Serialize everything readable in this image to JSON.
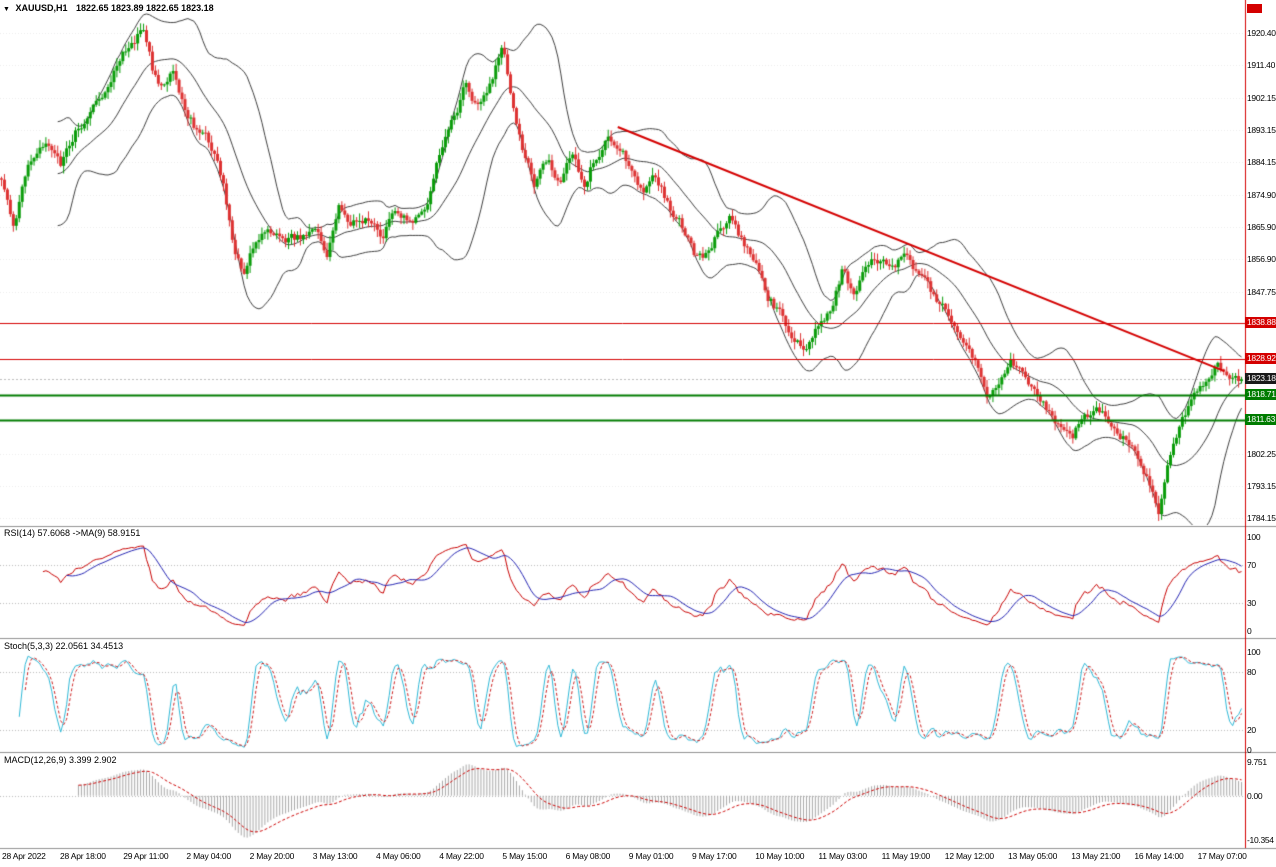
{
  "window": {
    "dropdown_glyph": "▼",
    "symbol_period": "XAUUSD,H1",
    "ohlc": "1822.65 1823.89 1822.65 1823.18"
  },
  "colors": {
    "up": "#0a9c0a",
    "down": "#dd3333",
    "bollinger": "#3f3f3f",
    "trend": "#d40000",
    "resistance": "#d40000",
    "support": "#007c00",
    "grid": "#ececec",
    "divider": "#909090",
    "axis_text": "#000000",
    "rsi_main": "#c80000",
    "rsi_ma": "#2424b2",
    "stoch_main": "#2fb8d6",
    "stoch_signal": "#cc2222",
    "macd_hist": "#a8a8a8",
    "macd_signal": "#cc0000",
    "badge_black": "#1a1a1a",
    "current_line": "#bcbcbc",
    "right_edge_line": "#d40000"
  },
  "chart_data": {
    "type": "candlestick+indicators",
    "symbol": "XAUUSD",
    "timeframe": "H1",
    "ohlc_display": {
      "open": "1822.65",
      "high": "1823.89",
      "low": "1822.65",
      "close": "1823.18"
    },
    "y_axis": {
      "ylim": [
        1782.3,
        1925.7
      ],
      "labels": [
        "1920.40",
        "1911.40",
        "1902.15",
        "1893.15",
        "1884.15",
        "1874.90",
        "1865.90",
        "1856.90",
        "1847.75",
        "1802.25",
        "1793.15",
        "1784.15"
      ]
    },
    "levels": {
      "resistance": [
        {
          "price": 1838.88,
          "label": "1838.88"
        },
        {
          "price": 1828.92,
          "label": "1828.92"
        }
      ],
      "support": [
        {
          "price": 1818.71,
          "label": "1818.71"
        },
        {
          "price": 1811.63,
          "label": "1811.63"
        }
      ],
      "current": {
        "price": 1823.18,
        "label": "1823.18"
      }
    },
    "trendline": {
      "x1": 0.497,
      "price1": 1894.0,
      "x2": 0.985,
      "price2": 1825.5
    },
    "bollinger": {
      "period": 20,
      "deviation": 2
    },
    "price_path": [
      [
        0,
        1880
      ],
      [
        0.01,
        1864
      ],
      [
        0.022,
        1885
      ],
      [
        0.035,
        1890
      ],
      [
        0.048,
        1884
      ],
      [
        0.06,
        1893
      ],
      [
        0.072,
        1898
      ],
      [
        0.085,
        1906
      ],
      [
        0.098,
        1914
      ],
      [
        0.108,
        1919
      ],
      [
        0.115,
        1921
      ],
      [
        0.122,
        1910
      ],
      [
        0.13,
        1904
      ],
      [
        0.138,
        1911
      ],
      [
        0.148,
        1899
      ],
      [
        0.158,
        1893
      ],
      [
        0.168,
        1890
      ],
      [
        0.178,
        1880
      ],
      [
        0.188,
        1858
      ],
      [
        0.196,
        1852
      ],
      [
        0.205,
        1862
      ],
      [
        0.215,
        1866
      ],
      [
        0.228,
        1862
      ],
      [
        0.24,
        1863
      ],
      [
        0.252,
        1866
      ],
      [
        0.262,
        1858
      ],
      [
        0.272,
        1872
      ],
      [
        0.282,
        1866
      ],
      [
        0.295,
        1869
      ],
      [
        0.308,
        1863
      ],
      [
        0.318,
        1871
      ],
      [
        0.33,
        1866
      ],
      [
        0.342,
        1870
      ],
      [
        0.352,
        1886
      ],
      [
        0.36,
        1893
      ],
      [
        0.368,
        1899
      ],
      [
        0.375,
        1907
      ],
      [
        0.382,
        1900
      ],
      [
        0.39,
        1904
      ],
      [
        0.398,
        1910
      ],
      [
        0.405,
        1916
      ],
      [
        0.412,
        1900
      ],
      [
        0.42,
        1888
      ],
      [
        0.43,
        1878
      ],
      [
        0.44,
        1884
      ],
      [
        0.45,
        1879
      ],
      [
        0.46,
        1886
      ],
      [
        0.47,
        1878
      ],
      [
        0.48,
        1886
      ],
      [
        0.49,
        1892
      ],
      [
        0.498,
        1888
      ],
      [
        0.508,
        1883
      ],
      [
        0.518,
        1876
      ],
      [
        0.528,
        1880
      ],
      [
        0.538,
        1872
      ],
      [
        0.548,
        1867
      ],
      [
        0.558,
        1859
      ],
      [
        0.568,
        1858
      ],
      [
        0.578,
        1864
      ],
      [
        0.588,
        1869
      ],
      [
        0.598,
        1862
      ],
      [
        0.608,
        1856
      ],
      [
        0.618,
        1846
      ],
      [
        0.628,
        1842
      ],
      [
        0.638,
        1835
      ],
      [
        0.648,
        1832
      ],
      [
        0.658,
        1839
      ],
      [
        0.668,
        1842
      ],
      [
        0.678,
        1854
      ],
      [
        0.688,
        1846
      ],
      [
        0.698,
        1856
      ],
      [
        0.708,
        1857
      ],
      [
        0.718,
        1854
      ],
      [
        0.728,
        1858
      ],
      [
        0.738,
        1854
      ],
      [
        0.748,
        1849
      ],
      [
        0.758,
        1844
      ],
      [
        0.768,
        1839
      ],
      [
        0.778,
        1833
      ],
      [
        0.788,
        1826
      ],
      [
        0.795,
        1818
      ],
      [
        0.805,
        1824
      ],
      [
        0.815,
        1828
      ],
      [
        0.825,
        1824
      ],
      [
        0.835,
        1819
      ],
      [
        0.845,
        1813
      ],
      [
        0.855,
        1809
      ],
      [
        0.862,
        1806
      ],
      [
        0.872,
        1812
      ],
      [
        0.882,
        1816
      ],
      [
        0.892,
        1812
      ],
      [
        0.902,
        1808
      ],
      [
        0.912,
        1804
      ],
      [
        0.92,
        1798
      ],
      [
        0.928,
        1792
      ],
      [
        0.934,
        1786
      ],
      [
        0.94,
        1799
      ],
      [
        0.948,
        1808
      ],
      [
        0.956,
        1814
      ],
      [
        0.964,
        1819
      ],
      [
        0.972,
        1824
      ],
      [
        0.98,
        1827
      ],
      [
        0.988,
        1825
      ],
      [
        1,
        1823.18
      ]
    ],
    "x_axis": {
      "labels": [
        "28 Apr 2022",
        "28 Apr 18:00",
        "29 Apr 11:00",
        "2 May 04:00",
        "2 May 20:00",
        "3 May 13:00",
        "4 May 06:00",
        "4 May 22:00",
        "5 May 15:00",
        "6 May 08:00",
        "9 May 01:00",
        "9 May 17:00",
        "10 May 10:00",
        "11 May 03:00",
        "11 May 19:00",
        "12 May 12:00",
        "13 May 05:00",
        "13 May 21:00",
        "16 May 14:00",
        "17 May 07:00"
      ]
    },
    "indicators": [
      {
        "id": "rsi",
        "label": "RSI(14) 57.6068 ->MA(9) 58.9151",
        "levels": [
          "100",
          "70",
          "30",
          "0"
        ],
        "level_values": [
          100,
          70,
          30,
          0
        ],
        "range": [
          0,
          100
        ]
      },
      {
        "id": "stoch",
        "label": "Stoch(5,3,3) 22.0561 34.4513",
        "levels": [
          "100",
          "80",
          "20",
          "0"
        ],
        "level_values": [
          100,
          80,
          20,
          0
        ],
        "range": [
          0,
          100
        ]
      },
      {
        "id": "macd",
        "label": "MACD(12,26,9) 3.399 2.902",
        "levels": [
          "9.751",
          "0.00",
          "-10.354"
        ],
        "level_values": [
          9.751,
          0,
          -10.354
        ],
        "range": [
          -10.354,
          9.751
        ]
      }
    ]
  }
}
